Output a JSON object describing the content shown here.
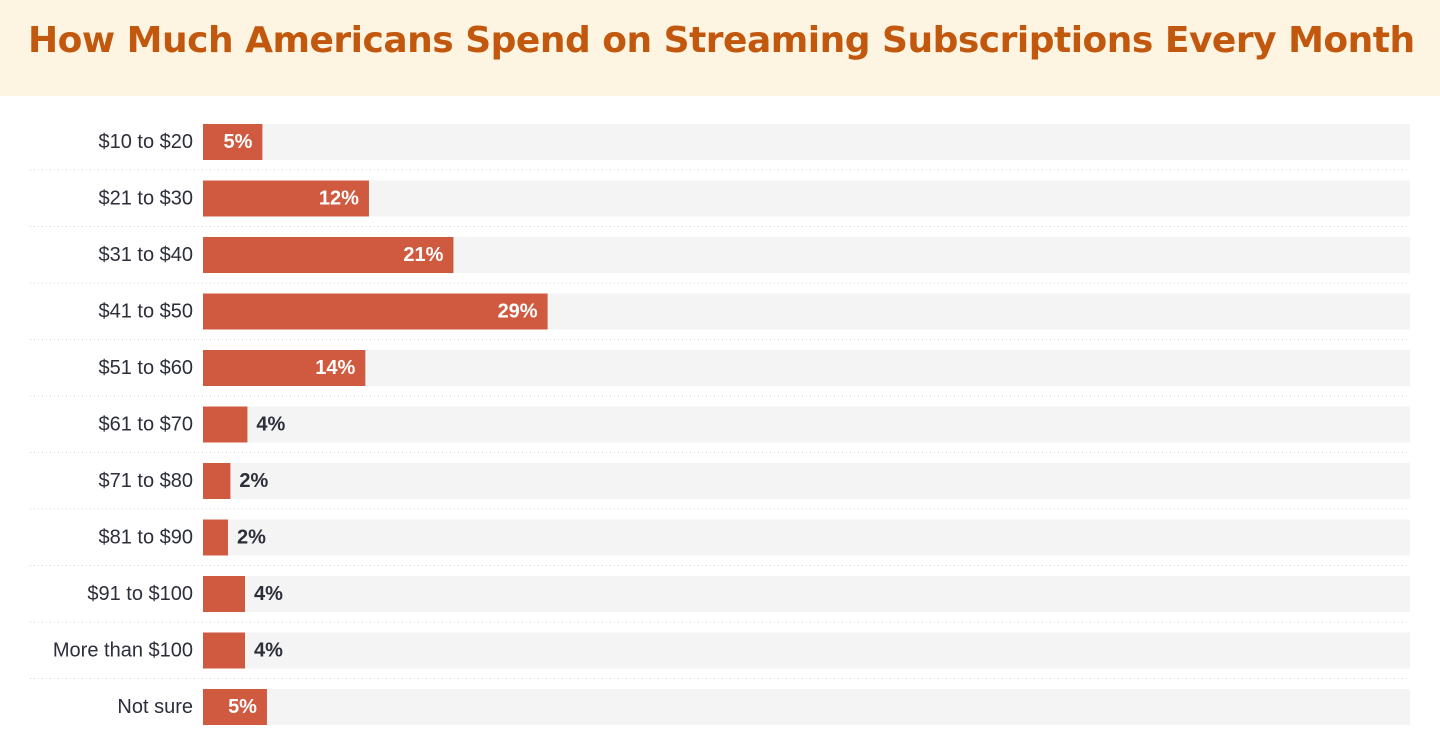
{
  "colors": {
    "title": "#c2570e",
    "header_bg": "#fdf5e2",
    "bar": "#d05a40",
    "track": "#f4f4f4",
    "label": "#2c2e3a",
    "value_inside": "#ffffff",
    "value_outside": "#2c2e3a",
    "divider": "#cfd3d8"
  },
  "chart_data": {
    "type": "bar",
    "orientation": "horizontal",
    "title": "How Much Americans Spend on Streaming Subscriptions Every Month",
    "xlabel": "",
    "ylabel": "",
    "xlim": [
      0,
      100
    ],
    "categories": [
      "$10 to $20",
      "$21 to $30",
      "$31 to $40",
      "$41 to $50",
      "$51 to $60",
      "$61 to $70",
      "$71 to $80",
      "$81 to $90",
      "$91 to $100",
      "More than $100",
      "Not sure"
    ],
    "values": [
      5,
      12,
      21,
      29,
      14,
      4,
      2,
      2,
      4,
      4,
      5
    ],
    "data_labels": [
      "5%",
      "12%",
      "21%",
      "29%",
      "14%",
      "4%",
      "2%",
      "2%",
      "4%",
      "4%",
      "5%"
    ],
    "draw_scale": [
      0.0492,
      0.1375,
      0.2075,
      0.2855,
      0.1345,
      0.0368,
      0.0227,
      0.0207,
      0.0348,
      0.0348,
      0.053
    ]
  }
}
